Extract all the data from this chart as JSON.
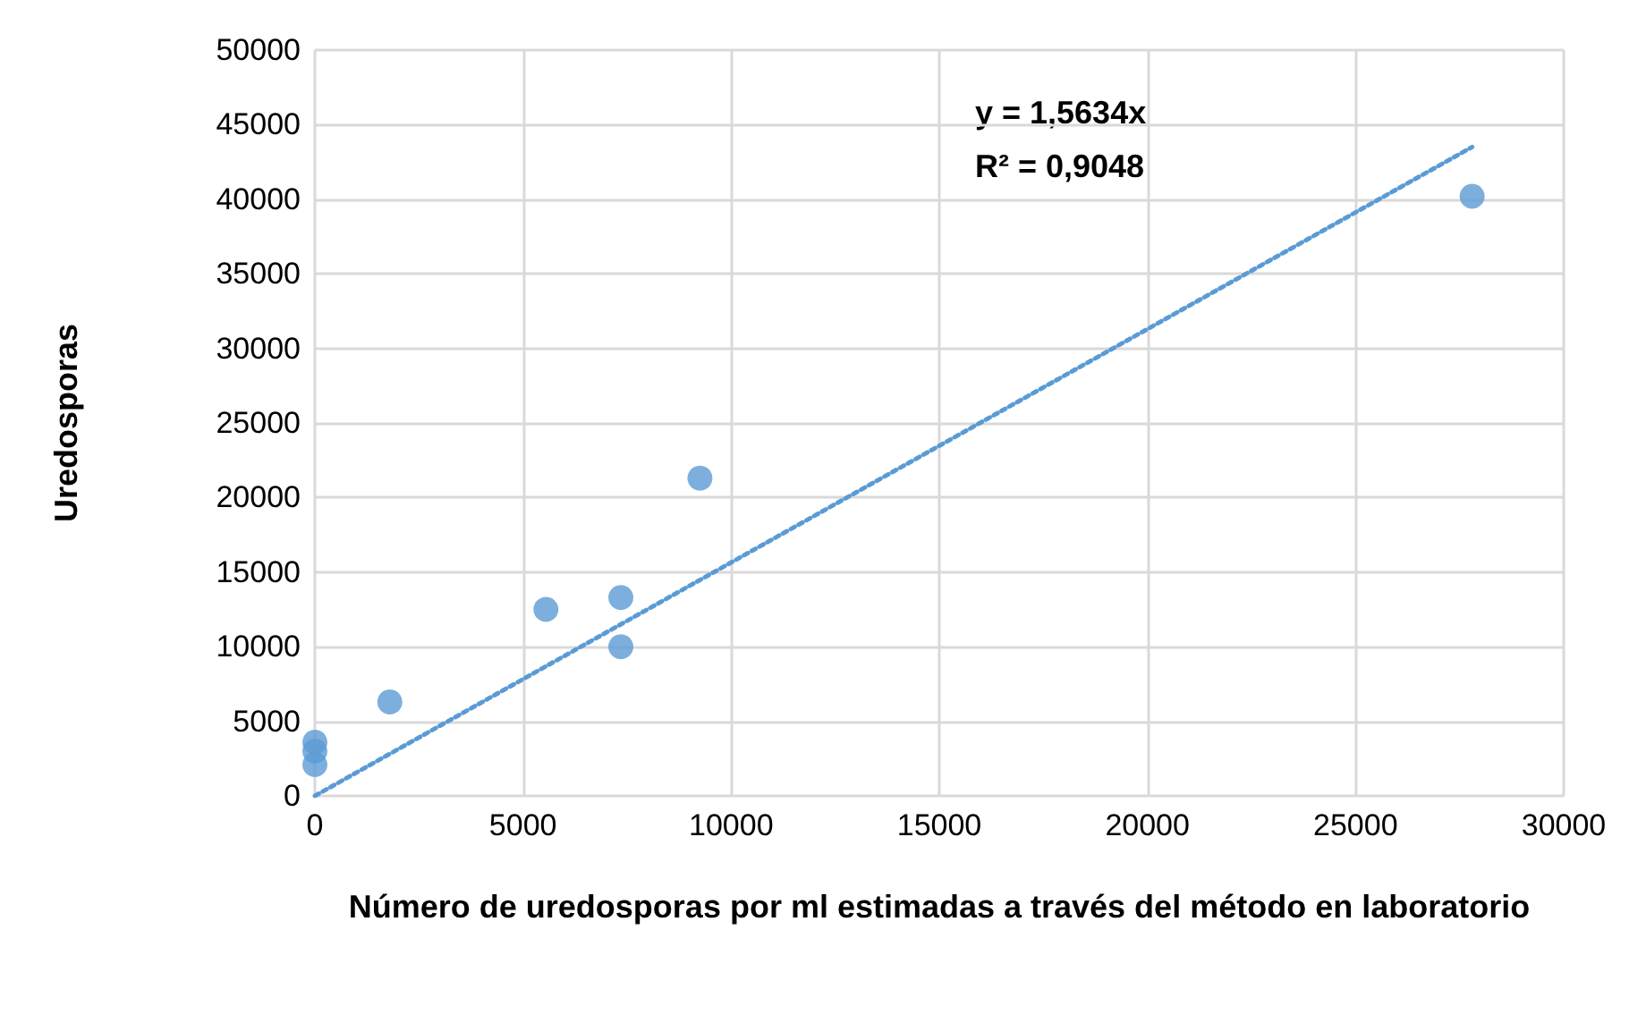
{
  "chart_data": {
    "type": "scatter",
    "xlabel": "Número de uredosporas por ml estimadas a través del método en laboratorio",
    "ylabel": "Uredosporas",
    "series": [
      {
        "color": "#5b9bd5",
        "marker": "circle",
        "x": [
          0,
          0,
          0,
          1800,
          5550,
          7350,
          7350,
          9250,
          27800
        ],
        "values": [
          3600,
          3000,
          2100,
          6300,
          12500,
          13300,
          10000,
          21300,
          40200
        ]
      },
      {
        "type": "line",
        "color": "#5b9bd5",
        "line_style": "dotted",
        "marker": "none",
        "x": [
          0,
          27800
        ],
        "values": [
          0,
          43500
        ]
      }
    ],
    "annotations": [
      "y = 1,5634x",
      "R² = 0,9048"
    ],
    "xlim": [
      0,
      30000
    ],
    "xticks": [
      0,
      5000,
      10000,
      15000,
      20000,
      25000,
      30000
    ],
    "ylim": [
      0,
      50000
    ],
    "yticks": [
      0,
      5000,
      10000,
      15000,
      20000,
      25000,
      30000,
      35000,
      40000,
      45000,
      50000
    ],
    "grid": true
  }
}
